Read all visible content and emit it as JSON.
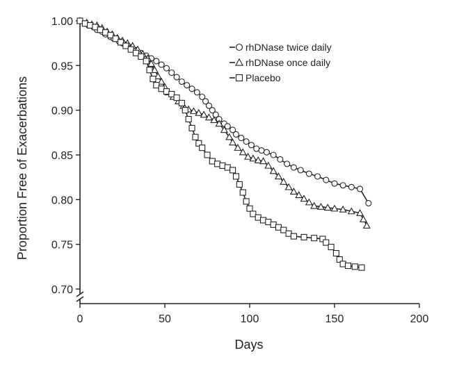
{
  "chart_data": {
    "type": "line",
    "title": "",
    "xlabel": "Days",
    "ylabel": "Proportion Free of Exacerbations",
    "xlim": [
      0,
      200
    ],
    "ylim": [
      0.7,
      1.0
    ],
    "xticks": [
      0,
      50,
      100,
      150,
      200
    ],
    "xtick_labels": [
      "0",
      "50",
      "100",
      "150",
      "200"
    ],
    "yticks": [
      0.7,
      0.75,
      0.8,
      0.85,
      0.9,
      0.95,
      1.0
    ],
    "ytick_labels": [
      "0.70",
      "0.75",
      "0.80",
      "0.85",
      "0.90",
      "0.95",
      "1.00"
    ],
    "y_axis_break": true,
    "grid": false,
    "legend_position": "top-right",
    "series": [
      {
        "name": "rhDNase twice daily",
        "marker": "circle",
        "points": [
          [
            0,
            1.0
          ],
          [
            3,
            0.997
          ],
          [
            5,
            0.995
          ],
          [
            8,
            0.993
          ],
          [
            10,
            0.99
          ],
          [
            13,
            0.988
          ],
          [
            15,
            0.985
          ],
          [
            18,
            0.982
          ],
          [
            20,
            0.98
          ],
          [
            23,
            0.977
          ],
          [
            25,
            0.975
          ],
          [
            28,
            0.972
          ],
          [
            30,
            0.97
          ],
          [
            33,
            0.967
          ],
          [
            36,
            0.964
          ],
          [
            39,
            0.961
          ],
          [
            42,
            0.958
          ],
          [
            45,
            0.955
          ],
          [
            48,
            0.951
          ],
          [
            51,
            0.947
          ],
          [
            54,
            0.942
          ],
          [
            57,
            0.937
          ],
          [
            60,
            0.932
          ],
          [
            63,
            0.928
          ],
          [
            66,
            0.924
          ],
          [
            69,
            0.92
          ],
          [
            72,
            0.915
          ],
          [
            74,
            0.91
          ],
          [
            76,
            0.905
          ],
          [
            78,
            0.9
          ],
          [
            80,
            0.895
          ],
          [
            82,
            0.89
          ],
          [
            85,
            0.885
          ],
          [
            87,
            0.882
          ],
          [
            90,
            0.878
          ],
          [
            92,
            0.873
          ],
          [
            95,
            0.869
          ],
          [
            98,
            0.865
          ],
          [
            101,
            0.861
          ],
          [
            104,
            0.857
          ],
          [
            107,
            0.855
          ],
          [
            110,
            0.853
          ],
          [
            114,
            0.85
          ],
          [
            118,
            0.845
          ],
          [
            122,
            0.84
          ],
          [
            126,
            0.836
          ],
          [
            130,
            0.833
          ],
          [
            135,
            0.829
          ],
          [
            140,
            0.826
          ],
          [
            145,
            0.822
          ],
          [
            150,
            0.818
          ],
          [
            155,
            0.816
          ],
          [
            160,
            0.814
          ],
          [
            165,
            0.812
          ],
          [
            170,
            0.796
          ]
        ]
      },
      {
        "name": "rhDNase once daily",
        "marker": "triangle",
        "points": [
          [
            0,
            1.0
          ],
          [
            4,
            0.998
          ],
          [
            7,
            0.996
          ],
          [
            10,
            0.995
          ],
          [
            13,
            0.992
          ],
          [
            16,
            0.988
          ],
          [
            19,
            0.985
          ],
          [
            22,
            0.981
          ],
          [
            25,
            0.978
          ],
          [
            28,
            0.975
          ],
          [
            31,
            0.972
          ],
          [
            34,
            0.968
          ],
          [
            37,
            0.963
          ],
          [
            40,
            0.958
          ],
          [
            42,
            0.952
          ],
          [
            44,
            0.945
          ],
          [
            46,
            0.938
          ],
          [
            48,
            0.932
          ],
          [
            50,
            0.926
          ],
          [
            52,
            0.92
          ],
          [
            55,
            0.915
          ],
          [
            58,
            0.91
          ],
          [
            61,
            0.905
          ],
          [
            64,
            0.901
          ],
          [
            67,
            0.899
          ],
          [
            70,
            0.897
          ],
          [
            73,
            0.895
          ],
          [
            76,
            0.892
          ],
          [
            79,
            0.889
          ],
          [
            82,
            0.885
          ],
          [
            85,
            0.878
          ],
          [
            88,
            0.87
          ],
          [
            90,
            0.864
          ],
          [
            93,
            0.858
          ],
          [
            96,
            0.853
          ],
          [
            99,
            0.848
          ],
          [
            102,
            0.846
          ],
          [
            105,
            0.844
          ],
          [
            108,
            0.843
          ],
          [
            111,
            0.838
          ],
          [
            114,
            0.832
          ],
          [
            117,
            0.826
          ],
          [
            120,
            0.82
          ],
          [
            123,
            0.814
          ],
          [
            126,
            0.809
          ],
          [
            129,
            0.805
          ],
          [
            132,
            0.801
          ],
          [
            135,
            0.797
          ],
          [
            138,
            0.793
          ],
          [
            142,
            0.792
          ],
          [
            146,
            0.791
          ],
          [
            150,
            0.79
          ],
          [
            155,
            0.789
          ],
          [
            160,
            0.787
          ],
          [
            165,
            0.785
          ],
          [
            167,
            0.778
          ],
          [
            169,
            0.771
          ]
        ]
      },
      {
        "name": "Placebo",
        "marker": "square",
        "points": [
          [
            0,
            1.0
          ],
          [
            3,
            0.997
          ],
          [
            6,
            0.995
          ],
          [
            9,
            0.993
          ],
          [
            12,
            0.99
          ],
          [
            15,
            0.987
          ],
          [
            18,
            0.984
          ],
          [
            21,
            0.98
          ],
          [
            24,
            0.976
          ],
          [
            27,
            0.972
          ],
          [
            30,
            0.968
          ],
          [
            33,
            0.964
          ],
          [
            36,
            0.96
          ],
          [
            39,
            0.955
          ],
          [
            41,
            0.945
          ],
          [
            43,
            0.935
          ],
          [
            45,
            0.928
          ],
          [
            48,
            0.924
          ],
          [
            51,
            0.921
          ],
          [
            54,
            0.918
          ],
          [
            57,
            0.914
          ],
          [
            60,
            0.908
          ],
          [
            62,
            0.9
          ],
          [
            64,
            0.89
          ],
          [
            66,
            0.88
          ],
          [
            68,
            0.87
          ],
          [
            70,
            0.863
          ],
          [
            72,
            0.858
          ],
          [
            75,
            0.85
          ],
          [
            78,
            0.843
          ],
          [
            81,
            0.84
          ],
          [
            84,
            0.838
          ],
          [
            87,
            0.836
          ],
          [
            90,
            0.833
          ],
          [
            92,
            0.826
          ],
          [
            94,
            0.817
          ],
          [
            96,
            0.808
          ],
          [
            98,
            0.798
          ],
          [
            100,
            0.79
          ],
          [
            102,
            0.784
          ],
          [
            105,
            0.78
          ],
          [
            108,
            0.777
          ],
          [
            111,
            0.775
          ],
          [
            114,
            0.772
          ],
          [
            117,
            0.769
          ],
          [
            120,
            0.766
          ],
          [
            123,
            0.762
          ],
          [
            126,
            0.759
          ],
          [
            132,
            0.758
          ],
          [
            138,
            0.757
          ],
          [
            143,
            0.756
          ],
          [
            145,
            0.752
          ],
          [
            148,
            0.747
          ],
          [
            151,
            0.74
          ],
          [
            153,
            0.733
          ],
          [
            155,
            0.728
          ],
          [
            158,
            0.726
          ],
          [
            162,
            0.725
          ],
          [
            166,
            0.724
          ]
        ]
      }
    ]
  }
}
